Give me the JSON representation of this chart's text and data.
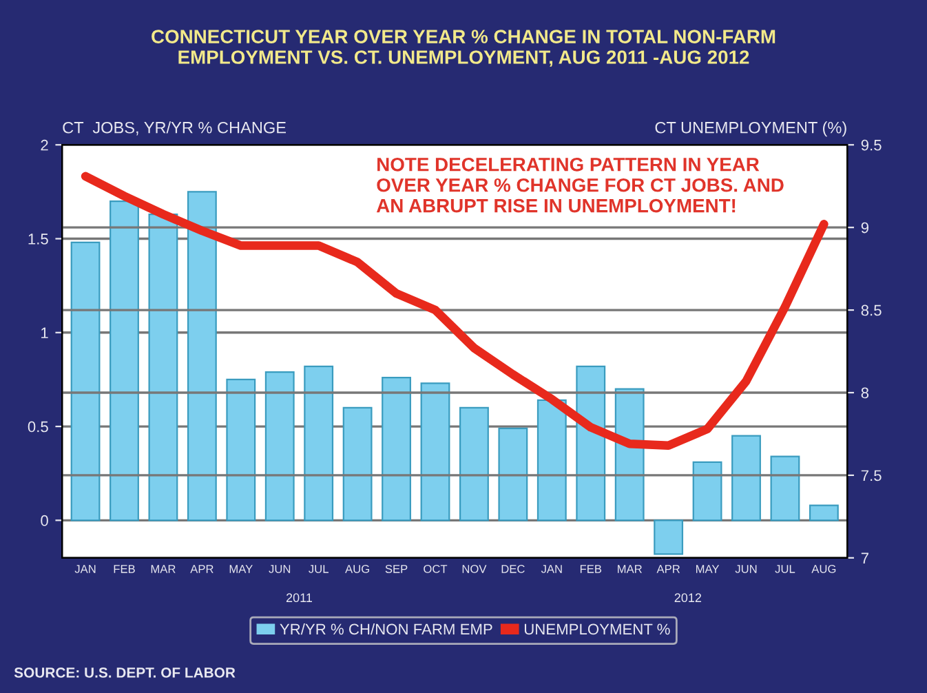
{
  "chart_data": {
    "type": "bar",
    "title": "CONNECTICUT YEAR OVER YEAR % CHANGE IN TOTAL NON-FARM\nEMPLOYMENT VS. CT. UNEMPLOYMENT, AUG 2011 -AUG 2012",
    "ylabel": "CT  JOBS, YR/YR % CHANGE",
    "y2label": "CT UNEMPLOYMENT (%)",
    "categories": [
      "JAN",
      "FEB",
      "MAR",
      "APR",
      "MAY",
      "JUN",
      "JUL",
      "AUG",
      "SEP",
      "OCT",
      "NOV",
      "DEC",
      "JAN",
      "FEB",
      "MAR",
      "APR",
      "MAY",
      "JUN",
      "JUL",
      "AUG"
    ],
    "series": [
      {
        "name": "YR/YR % CH/NON FARM EMP",
        "color": "#7dcfee",
        "values": [
          1.48,
          1.7,
          1.63,
          1.75,
          0.75,
          0.79,
          0.82,
          0.6,
          0.76,
          0.73,
          0.6,
          0.49,
          0.64,
          0.82,
          0.7,
          -0.18,
          0.31,
          0.45,
          0.34,
          0.08
        ]
      },
      {
        "name": "UNEMPLOYMENT %",
        "type": "line",
        "axis": "y2",
        "color": "#e8291c",
        "values": [
          9.31,
          9.19,
          9.08,
          8.98,
          8.89,
          8.89,
          8.89,
          8.79,
          8.6,
          8.5,
          8.27,
          8.11,
          7.96,
          7.79,
          7.69,
          7.68,
          7.78,
          8.07,
          8.52,
          9.02
        ]
      }
    ],
    "ylim": [
      -0.2,
      2
    ],
    "yticks": [
      0,
      0.5,
      1,
      1.5,
      2
    ],
    "y2lim": [
      7,
      9.5
    ],
    "y2ticks": [
      7,
      7.5,
      8,
      8.5,
      9,
      9.5
    ],
    "grid": true,
    "legend": "bottom",
    "marker": "none",
    "line_style": "solid",
    "annotations": [
      "NOTE DECELERATING PATTERN IN YEAR\nOVER YEAR % CHANGE FOR CT JOBS. AND\nAN ABRUPT RISE IN UNEMPLOYMENT!",
      "2011",
      "2012",
      "SOURCE: U.S. DEPT. OF LABOR"
    ]
  }
}
